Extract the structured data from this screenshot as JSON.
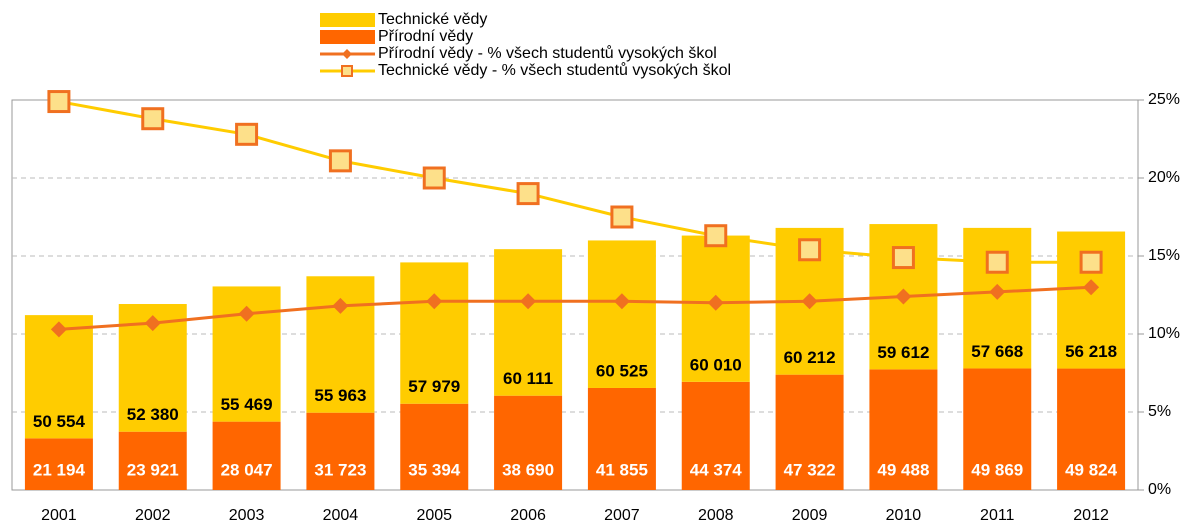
{
  "chart_data": {
    "type": "bar",
    "categories": [
      "2001",
      "2002",
      "2003",
      "2004",
      "2005",
      "2006",
      "2007",
      "2008",
      "2009",
      "2010",
      "2011",
      "2012"
    ],
    "ylim": [
      0,
      160000
    ],
    "y2lim": [
      0,
      25
    ],
    "y2ticks": [
      {
        "value": 0,
        "label": "0%"
      },
      {
        "value": 5,
        "label": "5%"
      },
      {
        "value": 10,
        "label": "10%"
      },
      {
        "value": 15,
        "label": "15%"
      },
      {
        "value": 20,
        "label": "20%"
      },
      {
        "value": 25,
        "label": "25%"
      }
    ],
    "grid": true,
    "series": [
      {
        "name": "Přírodní vědy",
        "type": "bar",
        "color": "#ff6600",
        "values": [
          21194,
          23921,
          28047,
          31723,
          35394,
          38690,
          41855,
          44374,
          47322,
          49488,
          49869,
          49824
        ],
        "value_labels": [
          "21 194",
          "23 921",
          "28 047",
          "31 723",
          "35 394",
          "38 690",
          "41 855",
          "44 374",
          "47 322",
          "49 488",
          "49 869",
          "49 824"
        ]
      },
      {
        "name": "Technické vědy",
        "type": "bar",
        "color": "#ffcc00",
        "values": [
          50554,
          52380,
          55469,
          55963,
          57979,
          60111,
          60525,
          60010,
          60212,
          59612,
          57668,
          56218
        ],
        "value_labels": [
          "50 554",
          "52 380",
          "55 469",
          "55 963",
          "57 979",
          "60 111",
          "60 525",
          "60 010",
          "60 212",
          "59 612",
          "57 668",
          "56 218"
        ]
      },
      {
        "name": "Přírodní vědy - % všech studentů vysokých škol",
        "type": "line",
        "axis": "y2",
        "color": "#f07020",
        "marker": "diamond",
        "values": [
          10.3,
          10.7,
          11.3,
          11.8,
          12.1,
          12.1,
          12.1,
          12.0,
          12.1,
          12.4,
          12.7,
          13.0
        ]
      },
      {
        "name": "Technické vědy - % všech studentů vysokých škol",
        "type": "line",
        "axis": "y2",
        "color": "#ffcc00",
        "marker": "square",
        "values": [
          24.9,
          23.8,
          22.8,
          21.1,
          20.0,
          19.0,
          17.5,
          16.3,
          15.4,
          14.9,
          14.6,
          14.6
        ]
      }
    ]
  }
}
